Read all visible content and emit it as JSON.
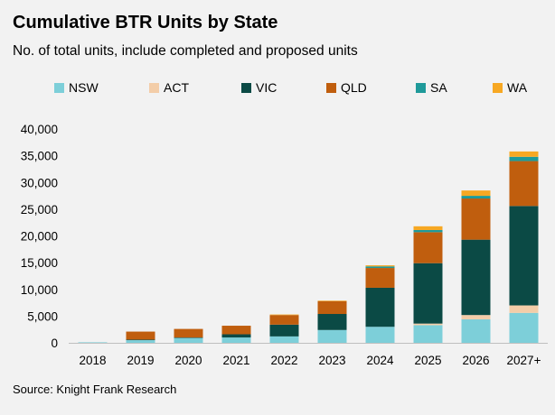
{
  "chart_data": {
    "type": "bar",
    "stacked": true,
    "title": "Cumulative BTR Units by State",
    "subtitle": "No. of total units, include completed and proposed units",
    "source": "Source: Knight Frank Research",
    "categories": [
      "2018",
      "2019",
      "2020",
      "2021",
      "2022",
      "2023",
      "2024",
      "2025",
      "2026",
      "2027+"
    ],
    "ylim": [
      0,
      40000
    ],
    "yticks": [
      0,
      5000,
      10000,
      15000,
      20000,
      25000,
      30000,
      35000,
      40000
    ],
    "ytick_labels": [
      "0",
      "5,000",
      "10,000",
      "15,000",
      "20,000",
      "25,000",
      "30,000",
      "35,000",
      "40,000"
    ],
    "grid": false,
    "legend_position": "top",
    "series": [
      {
        "name": "NSW",
        "color": "#7dcfd9",
        "values": [
          100,
          500,
          900,
          1000,
          1200,
          2400,
          3000,
          3300,
          4400,
          5600
        ]
      },
      {
        "name": "ACT",
        "color": "#f3cda8",
        "values": [
          0,
          0,
          0,
          0,
          0,
          0,
          0,
          300,
          800,
          1400
        ]
      },
      {
        "name": "VIC",
        "color": "#0b4a45",
        "values": [
          0,
          100,
          100,
          600,
          2200,
          3000,
          7300,
          11300,
          14100,
          18600
        ]
      },
      {
        "name": "QLD",
        "color": "#c05e0e",
        "values": [
          0,
          1500,
          1600,
          1600,
          1800,
          2400,
          3700,
          5800,
          7700,
          8400
        ]
      },
      {
        "name": "SA",
        "color": "#1f9a9a",
        "values": [
          0,
          0,
          0,
          0,
          0,
          0,
          300,
          400,
          500,
          800
        ]
      },
      {
        "name": "WA",
        "color": "#f7a823",
        "values": [
          0,
          0,
          0,
          0,
          100,
          100,
          200,
          700,
          1000,
          1000
        ]
      }
    ]
  }
}
